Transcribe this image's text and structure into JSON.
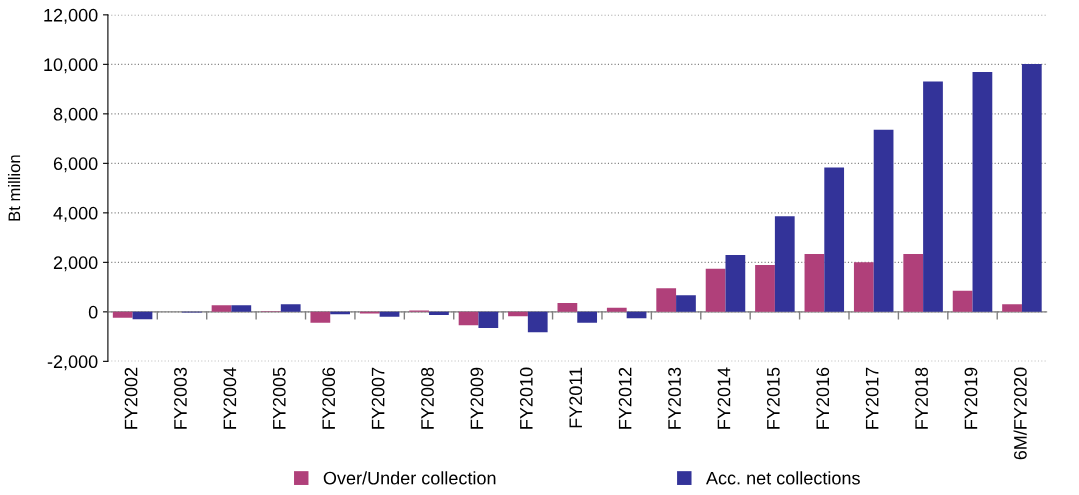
{
  "chart_data": {
    "type": "bar",
    "ylabel": "Bt million",
    "categories": [
      "FY2002",
      "FY2003",
      "FY2004",
      "FY2005",
      "FY2006",
      "FY2007",
      "FY2008",
      "FY2009",
      "FY2010",
      "FY2011",
      "FY2012",
      "FY2013",
      "FY2014",
      "FY2015",
      "FY2016",
      "FY2017",
      "FY2018",
      "FY2019",
      "6M/FY2020"
    ],
    "series": [
      {
        "name": "Over/Under collection",
        "color": "#b0407a",
        "values": [
          -240,
          0,
          270,
          20,
          -440,
          -70,
          50,
          -540,
          -180,
          360,
          170,
          950,
          1740,
          1890,
          2340,
          2000,
          2340,
          850,
          310
        ]
      },
      {
        "name": "Acc. net collections",
        "color": "#333399",
        "values": [
          -300,
          -30,
          270,
          310,
          -100,
          -200,
          -130,
          -650,
          -820,
          -440,
          -260,
          670,
          2300,
          3860,
          5830,
          7360,
          9310,
          9690,
          10010
        ]
      }
    ],
    "ylim": [
      -2000,
      12000
    ],
    "yticks": [
      {
        "value": -2000,
        "label": "-2,000"
      },
      0,
      {
        "value": 2000,
        "label": "2,000"
      },
      {
        "value": 4000,
        "label": "4,000"
      },
      {
        "value": 6000,
        "label": "6,000"
      },
      {
        "value": 8000,
        "label": "8,000"
      },
      {
        "value": 10000,
        "label": "10,000"
      },
      {
        "value": 12000,
        "label": "12,000"
      }
    ],
    "grid": "y",
    "legend": "bottom"
  }
}
